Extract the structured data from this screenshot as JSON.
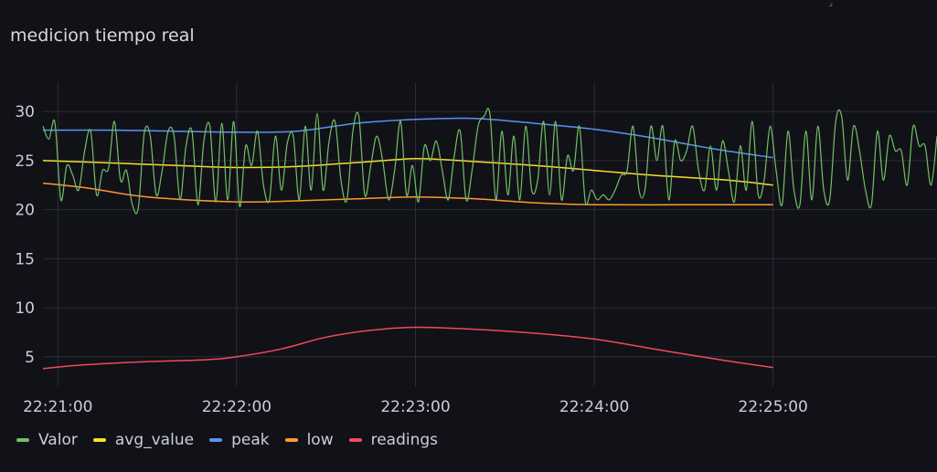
{
  "panel": {
    "title": "medicion tiempo real"
  },
  "chart_data": {
    "type": "line",
    "title": "medicion tiempo real",
    "xlabel": "",
    "ylabel": "",
    "x_ticks": [
      "22:21:00",
      "22:22:00",
      "22:23:00",
      "22:24:00",
      "22:25:00"
    ],
    "y_ticks": [
      5,
      10,
      15,
      20,
      25,
      30
    ],
    "xlim": [
      "22:20:55",
      "22:25:55"
    ],
    "ylim": [
      2,
      33
    ],
    "grid": true,
    "legend_position": "bottom-left",
    "series": [
      {
        "name": "Valor",
        "color": "#73bf69",
        "x": [
          "22:20:55",
          "22:20:57",
          "22:20:59",
          "22:21:01",
          "22:21:03",
          "22:21:05",
          "22:21:07",
          "22:21:09",
          "22:21:11",
          "22:21:13",
          "22:21:15",
          "22:21:17",
          "22:21:19",
          "22:21:21",
          "22:21:23",
          "22:21:25",
          "22:21:27",
          "22:21:29",
          "22:21:31",
          "22:21:33",
          "22:21:35",
          "22:21:37",
          "22:21:39",
          "22:21:41",
          "22:21:43",
          "22:21:45",
          "22:21:47",
          "22:21:49",
          "22:21:51",
          "22:21:53",
          "22:21:55",
          "22:21:57",
          "22:21:59",
          "22:22:01",
          "22:22:03",
          "22:22:05",
          "22:22:07",
          "22:22:09",
          "22:22:11",
          "22:22:13",
          "22:22:15",
          "22:22:17",
          "22:22:19",
          "22:22:21",
          "22:22:23",
          "22:22:25",
          "22:22:27",
          "22:22:29",
          "22:22:31",
          "22:22:33",
          "22:22:35",
          "22:22:37",
          "22:22:39",
          "22:22:41",
          "22:22:43",
          "22:22:45",
          "22:22:47",
          "22:22:49",
          "22:22:51",
          "22:22:53",
          "22:22:55",
          "22:22:57",
          "22:22:59",
          "22:23:01",
          "22:23:03",
          "22:23:05",
          "22:23:07",
          "22:23:09",
          "22:23:11",
          "22:23:13",
          "22:23:15",
          "22:23:17",
          "22:23:19",
          "22:23:21",
          "22:23:23",
          "22:23:25",
          "22:23:27",
          "22:23:29",
          "22:23:31",
          "22:23:33",
          "22:23:35",
          "22:23:37",
          "22:23:39",
          "22:23:41",
          "22:23:43",
          "22:23:45",
          "22:23:47",
          "22:23:49",
          "22:23:51",
          "22:23:53",
          "22:23:55",
          "22:23:57",
          "22:23:59",
          "22:24:01",
          "22:24:03",
          "22:24:05",
          "22:24:07",
          "22:24:09",
          "22:24:11",
          "22:24:13",
          "22:24:15",
          "22:24:17",
          "22:24:19",
          "22:24:21",
          "22:24:23",
          "22:24:25",
          "22:24:27",
          "22:24:29",
          "22:24:31",
          "22:24:33",
          "22:24:35",
          "22:24:37",
          "22:24:39",
          "22:24:41",
          "22:24:43",
          "22:24:45",
          "22:24:47",
          "22:24:49",
          "22:24:51",
          "22:24:53",
          "22:24:55",
          "22:24:57",
          "22:24:59",
          "22:25:01",
          "22:25:03",
          "22:25:05",
          "22:25:07",
          "22:25:09",
          "22:25:11",
          "22:25:13",
          "22:25:15",
          "22:25:17",
          "22:25:19",
          "22:25:21",
          "22:25:23",
          "22:25:25",
          "22:25:27",
          "22:25:29",
          "22:25:31",
          "22:25:33",
          "22:25:35",
          "22:25:37",
          "22:25:39",
          "22:25:41",
          "22:25:43",
          "22:25:45",
          "22:25:47",
          "22:25:49",
          "22:25:51",
          "22:25:53",
          "22:25:55"
        ],
        "y": [
          28.5,
          27.2,
          28.9,
          21.0,
          24.5,
          23.5,
          22.0,
          26.0,
          28.0,
          21.5,
          24.0,
          24.2,
          29.0,
          23.0,
          24.0,
          20.5,
          20.2,
          27.8,
          27.5,
          21.5,
          24.0,
          28.0,
          27.5,
          21.0,
          26.5,
          28.0,
          20.5,
          27.0,
          28.5,
          20.8,
          28.8,
          21.0,
          29.0,
          20.3,
          26.5,
          24.5,
          28.0,
          22.5,
          21.0,
          27.5,
          22.0,
          26.8,
          27.5,
          21.0,
          28.5,
          22.0,
          29.8,
          22.0,
          27.0,
          29.0,
          23.0,
          21.0,
          28.0,
          29.5,
          21.5,
          24.5,
          27.5,
          25.0,
          21.0,
          24.0,
          29.0,
          21.5,
          24.5,
          20.8,
          26.5,
          25.0,
          27.0,
          24.0,
          21.0,
          25.5,
          28.0,
          21.0,
          24.0,
          28.5,
          29.5,
          29.7,
          21.0,
          28.0,
          21.5,
          27.5,
          21.0,
          28.5,
          22.0,
          23.0,
          29.0,
          21.5,
          29.0,
          21.0,
          25.5,
          24.0,
          28.5,
          20.8,
          22.0,
          21.0,
          21.5,
          21.0,
          22.0,
          23.5,
          24.0,
          28.5,
          22.0,
          22.0,
          28.5,
          25.0,
          28.5,
          21.0,
          27.0,
          25.0,
          26.0,
          28.5,
          24.0,
          22.0,
          26.5,
          22.0,
          27.0,
          24.0,
          20.8,
          26.5,
          22.0,
          29.0,
          21.5,
          23.0,
          28.5,
          24.0,
          20.5,
          28.0,
          22.0,
          20.5,
          28.0,
          21.0,
          28.5,
          22.0,
          21.0,
          29.0,
          29.5,
          23.0,
          28.5,
          26.0,
          22.0,
          20.5,
          28.0,
          23.0,
          27.5,
          26.0,
          26.0,
          22.5,
          28.5,
          26.5,
          26.5,
          22.5,
          27.5
        ]
      },
      {
        "name": "avg_value",
        "color": "#fade2a",
        "x": [
          "22:20:55",
          "22:21:15",
          "22:21:40",
          "22:22:00",
          "22:22:20",
          "22:22:45",
          "22:23:00",
          "22:23:15",
          "22:23:40",
          "22:24:00",
          "22:24:20",
          "22:24:45",
          "22:25:00"
        ],
        "y": [
          25.0,
          24.8,
          24.5,
          24.3,
          24.4,
          24.9,
          25.2,
          25.0,
          24.5,
          24.0,
          23.5,
          23.0,
          22.5
        ]
      },
      {
        "name": "peak",
        "color": "#5794f2",
        "x": [
          "22:20:55",
          "22:21:20",
          "22:21:40",
          "22:22:00",
          "22:22:20",
          "22:22:40",
          "22:23:00",
          "22:23:20",
          "22:23:40",
          "22:24:00",
          "22:24:20",
          "22:24:40",
          "22:25:00"
        ],
        "y": [
          28.1,
          28.1,
          28.0,
          27.9,
          28.0,
          28.8,
          29.2,
          29.3,
          28.8,
          28.2,
          27.3,
          26.2,
          25.3
        ]
      },
      {
        "name": "low",
        "color": "#ff9830",
        "x": [
          "22:20:55",
          "22:21:10",
          "22:21:30",
          "22:22:00",
          "22:22:20",
          "22:22:40",
          "22:23:00",
          "22:23:20",
          "22:23:40",
          "22:24:00",
          "22:24:30",
          "22:25:00"
        ],
        "y": [
          22.7,
          22.2,
          21.3,
          20.8,
          20.9,
          21.1,
          21.3,
          21.1,
          20.7,
          20.5,
          20.5,
          20.5
        ]
      },
      {
        "name": "readings",
        "color": "#f2495c",
        "x": [
          "22:20:55",
          "22:21:10",
          "22:21:30",
          "22:21:50",
          "22:22:00",
          "22:22:15",
          "22:22:30",
          "22:22:45",
          "22:23:00",
          "22:23:20",
          "22:23:40",
          "22:24:00",
          "22:24:20",
          "22:24:40",
          "22:25:00"
        ],
        "y": [
          3.8,
          4.2,
          4.5,
          4.7,
          5.0,
          5.8,
          7.0,
          7.7,
          8.0,
          7.8,
          7.4,
          6.8,
          5.8,
          4.8,
          3.9
        ]
      }
    ]
  }
}
